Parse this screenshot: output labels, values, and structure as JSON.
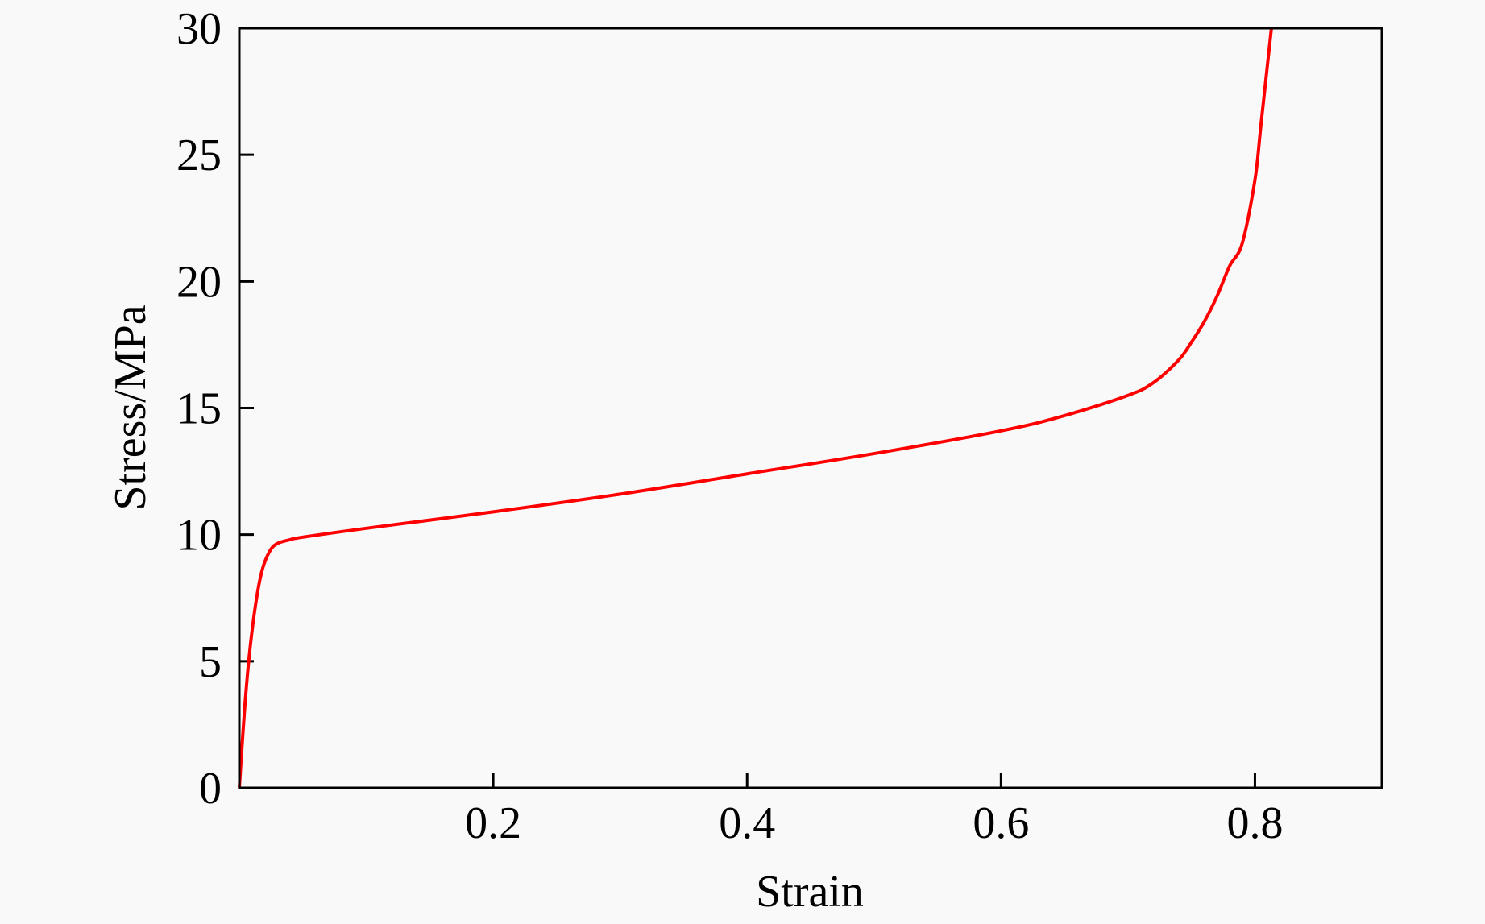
{
  "chart_data": {
    "type": "line",
    "title": "",
    "xlabel": "Strain",
    "ylabel": "Stress/MPa",
    "xlim": [
      0,
      0.9
    ],
    "ylim": [
      0,
      30
    ],
    "xticks": [
      0.2,
      0.4,
      0.6,
      0.8
    ],
    "xtick_labels": [
      "0.2",
      "0.4",
      "0.6",
      "0.8"
    ],
    "yticks": [
      0,
      5,
      10,
      15,
      20,
      25,
      30
    ],
    "ytick_labels": [
      "0",
      "5",
      "10",
      "15",
      "20",
      "25",
      "30"
    ],
    "grid": false,
    "series": [
      {
        "color": "#ff0000",
        "x": [
          0,
          0.004,
          0.008,
          0.013,
          0.018,
          0.024,
          0.03,
          0.04,
          0.05,
          0.1,
          0.2,
          0.3,
          0.4,
          0.5,
          0.6,
          0.65,
          0.7,
          0.72,
          0.74,
          0.75,
          0.76,
          0.77,
          0.78,
          0.79,
          0.8,
          0.805,
          0.813
        ],
        "y": [
          0,
          3.0,
          5.3,
          7.3,
          8.6,
          9.35,
          9.65,
          9.8,
          9.9,
          10.25,
          10.9,
          11.6,
          12.4,
          13.2,
          14.1,
          14.7,
          15.5,
          16.0,
          16.9,
          17.6,
          18.4,
          19.4,
          20.6,
          21.5,
          24.0,
          26.3,
          30
        ]
      }
    ]
  }
}
